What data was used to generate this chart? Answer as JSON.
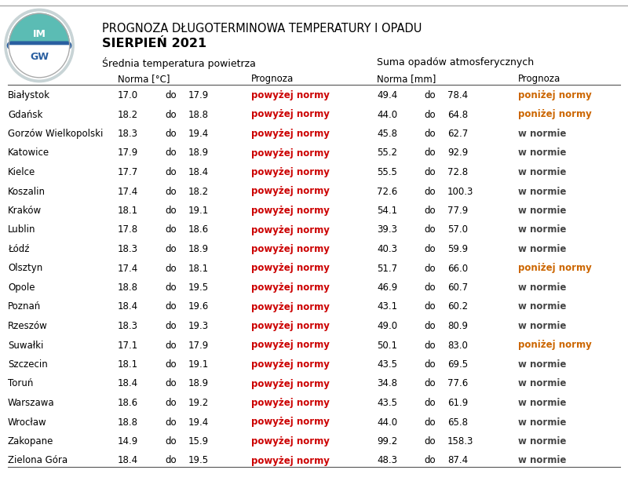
{
  "title_line1": "PROGNOZA DŁUGOTERMINOWA TEMPERATURY I OPADU",
  "title_line2": "SIERPIEŃ 2021",
  "subtitle_temp": "Średnia temperatura powietrza",
  "subtitle_precip": "Suma opadów atmosferycznych",
  "col_header_norma_temp": "Norma [°C]",
  "col_header_prognoza": "Prognoza",
  "col_header_norma_mm": "Norma [mm]",
  "col_header_prognoza2": "Prognoza",
  "cities": [
    "Białystok",
    "Gdańsk",
    "Gorzów Wielkopolski",
    "Katowice",
    "Kielce",
    "Koszalin",
    "Kraków",
    "Lublin",
    "Łódź",
    "Olsztyn",
    "Opole",
    "Poznań",
    "Rzeszów",
    "Suwałki",
    "Szczecin",
    "Toruń",
    "Warszawa",
    "Wrocław",
    "Zakopane",
    "Zielona Góra"
  ],
  "temp_norma_low": [
    17.0,
    18.2,
    18.3,
    17.9,
    17.7,
    17.4,
    18.1,
    17.8,
    18.3,
    17.4,
    18.8,
    18.4,
    18.3,
    17.1,
    18.1,
    18.4,
    18.6,
    18.8,
    14.9,
    18.4
  ],
  "temp_norma_high": [
    17.9,
    18.8,
    19.4,
    18.9,
    18.4,
    18.2,
    19.1,
    18.6,
    18.9,
    18.1,
    19.5,
    19.6,
    19.3,
    17.9,
    19.1,
    18.9,
    19.2,
    19.4,
    15.9,
    19.5
  ],
  "temp_prognoza": [
    "powyżej normy",
    "powyżej normy",
    "powyżej normy",
    "powyżej normy",
    "powyżej normy",
    "powyżej normy",
    "powyżej normy",
    "powyżej normy",
    "powyżej normy",
    "powyżej normy",
    "powyżej normy",
    "powyżej normy",
    "powyżej normy",
    "powyżej normy",
    "powyżej normy",
    "powyżej normy",
    "powyżej normy",
    "powyżej normy",
    "powyżej normy",
    "powyżej normy"
  ],
  "temp_prognoza_color": "#cc0000",
  "precip_norma_low": [
    49.4,
    44.0,
    45.8,
    55.2,
    55.5,
    72.6,
    54.1,
    39.3,
    40.3,
    51.7,
    46.9,
    43.1,
    49.0,
    50.1,
    43.5,
    34.8,
    43.5,
    44.0,
    99.2,
    48.3
  ],
  "precip_norma_high": [
    78.4,
    64.8,
    62.7,
    92.9,
    72.8,
    100.3,
    77.9,
    57.0,
    59.9,
    66.0,
    60.7,
    60.2,
    80.9,
    83.0,
    69.5,
    77.6,
    61.9,
    65.8,
    158.3,
    87.4
  ],
  "precip_prognoza": [
    "poniżej normy",
    "poniżej normy",
    "w normie",
    "w normie",
    "w normie",
    "w normie",
    "w normie",
    "w normie",
    "w normie",
    "poniżej normy",
    "w normie",
    "w normie",
    "w normie",
    "poniżej normy",
    "w normie",
    "w normie",
    "w normie",
    "w normie",
    "w normie",
    "w normie"
  ],
  "precip_prognoza_colors": [
    "#cc6600",
    "#cc6600",
    "#444444",
    "#444444",
    "#444444",
    "#444444",
    "#444444",
    "#444444",
    "#444444",
    "#cc6600",
    "#444444",
    "#444444",
    "#444444",
    "#cc6600",
    "#444444",
    "#444444",
    "#444444",
    "#444444",
    "#444444",
    "#444444"
  ],
  "bg_color": "#ffffff",
  "border_color": "#aaaaaa",
  "font_size_title1": 10.5,
  "font_size_title2": 11.5,
  "font_size_subtitle": 9,
  "font_size_header": 8.5,
  "font_size_data": 8.5,
  "logo_circle_outer": "#b0c8cc",
  "logo_circle_mid": "#5bb8b0",
  "logo_text_color": "#ffffff",
  "logo_stripe_color": "#3a7ab0"
}
